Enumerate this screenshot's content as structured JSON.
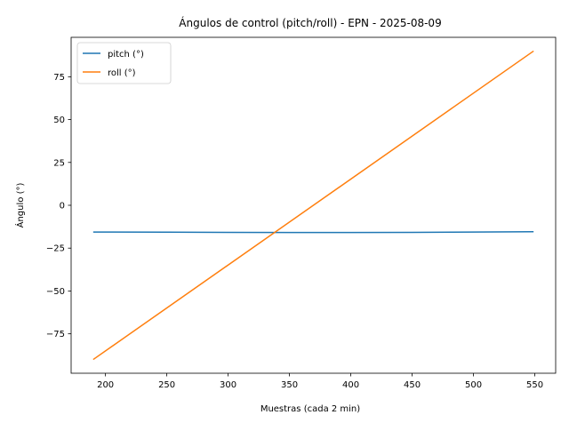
{
  "chart_data": {
    "type": "line",
    "title": "Ángulos de control (pitch/roll) - EPN - 2025-08-09",
    "xlabel": "Muestras (cada 2 min)",
    "ylabel": "Ángulo (°)",
    "xlim": [
      172,
      567
    ],
    "ylim": [
      -98,
      98
    ],
    "xticks": [
      200,
      250,
      300,
      350,
      400,
      450,
      500,
      550
    ],
    "yticks": [
      -75,
      -50,
      -25,
      0,
      25,
      50,
      75
    ],
    "grid": false,
    "legend_position": "upper-left",
    "series": [
      {
        "name": "pitch (°)",
        "color": "#1f77b4",
        "x": [
          190,
          250,
          300,
          350,
          400,
          450,
          500,
          549
        ],
        "y": [
          -15.6,
          -15.7,
          -15.8,
          -15.9,
          -15.9,
          -15.8,
          -15.6,
          -15.4
        ]
      },
      {
        "name": "roll (°)",
        "color": "#ff7f0e",
        "x": [
          190,
          549
        ],
        "y": [
          -90,
          90
        ]
      }
    ]
  }
}
